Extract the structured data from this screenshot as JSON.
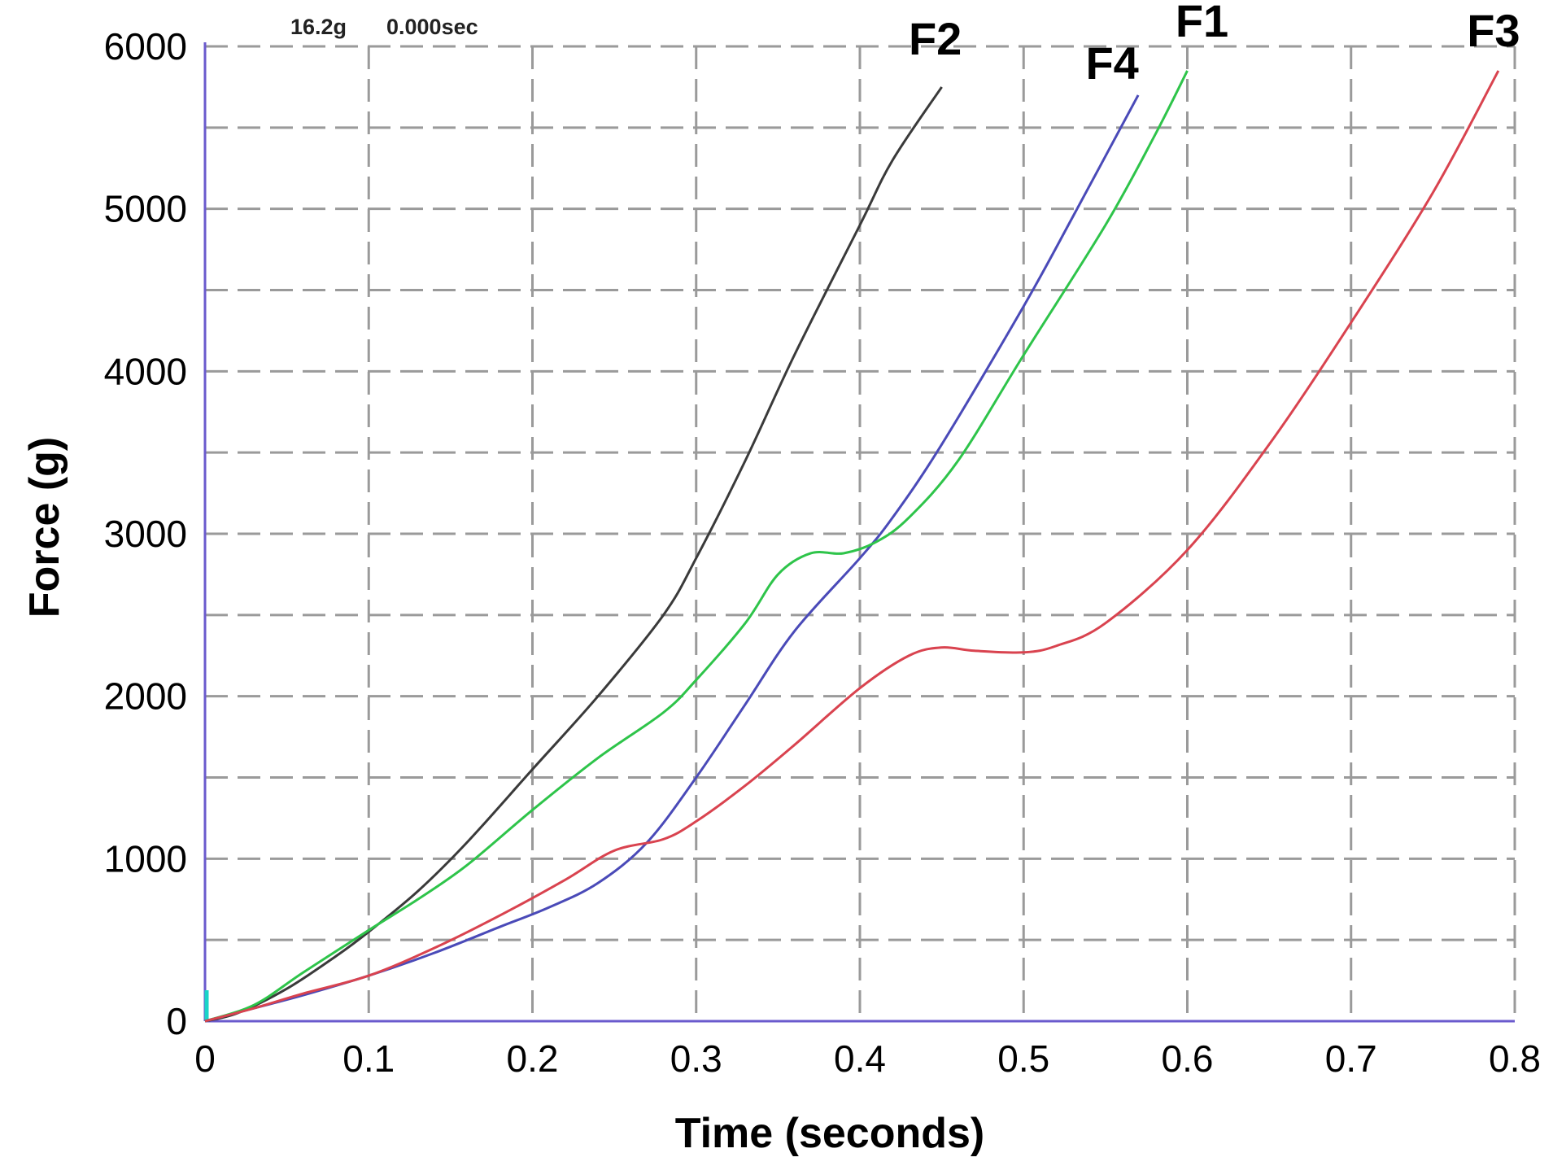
{
  "readout": {
    "force": "16.2g",
    "time": "0.000sec"
  },
  "chart_data": {
    "type": "line",
    "title": "",
    "xlabel": "Time (seconds)",
    "ylabel": "Force (g)",
    "xlim": [
      0,
      0.8
    ],
    "ylim": [
      0,
      6000
    ],
    "xticks": [
      0,
      0.1,
      0.2,
      0.3,
      0.4,
      0.5,
      0.6,
      0.7,
      0.8
    ],
    "xtick_labels": [
      "0",
      "0.1",
      "0.2",
      "0.3",
      "0.4",
      "0.5",
      "0.6",
      "0.7",
      "0.8"
    ],
    "yticks": [
      0,
      1000,
      2000,
      3000,
      4000,
      5000,
      6000
    ],
    "ytick_labels": [
      "0",
      "1000",
      "2000",
      "3000",
      "4000",
      "5000",
      "6000"
    ],
    "grid": true,
    "grid_style": "dashed",
    "series": [
      {
        "name": "F2",
        "color": "#3a3a3a",
        "x": [
          0,
          0.02,
          0.05,
          0.08,
          0.1,
          0.13,
          0.16,
          0.2,
          0.24,
          0.28,
          0.3,
          0.33,
          0.36,
          0.4,
          0.42,
          0.45
        ],
        "y": [
          0,
          50,
          200,
          400,
          550,
          800,
          1100,
          1550,
          2000,
          2500,
          2850,
          3450,
          4100,
          4900,
          5300,
          5750
        ]
      },
      {
        "name": "F4",
        "color": "#4a4ab8",
        "x": [
          0,
          0.03,
          0.06,
          0.1,
          0.14,
          0.18,
          0.21,
          0.24,
          0.27,
          0.3,
          0.33,
          0.36,
          0.4,
          0.42,
          0.45,
          0.5,
          0.53,
          0.57
        ],
        "y": [
          0,
          80,
          160,
          280,
          420,
          580,
          700,
          850,
          1100,
          1500,
          1950,
          2400,
          2850,
          3100,
          3550,
          4400,
          4950,
          5700
        ]
      },
      {
        "name": "F1",
        "color": "#2ec44a",
        "x": [
          0,
          0.03,
          0.06,
          0.1,
          0.13,
          0.16,
          0.2,
          0.24,
          0.28,
          0.3,
          0.33,
          0.35,
          0.37,
          0.39,
          0.41,
          0.43,
          0.46,
          0.5,
          0.55,
          0.58,
          0.6
        ],
        "y": [
          0,
          100,
          300,
          560,
          750,
          960,
          1300,
          1620,
          1900,
          2100,
          2450,
          2750,
          2880,
          2880,
          2950,
          3100,
          3450,
          4100,
          4900,
          5450,
          5850
        ]
      },
      {
        "name": "F3",
        "color": "#d9434f",
        "x": [
          0,
          0.03,
          0.06,
          0.1,
          0.14,
          0.18,
          0.22,
          0.25,
          0.28,
          0.3,
          0.33,
          0.36,
          0.4,
          0.43,
          0.45,
          0.47,
          0.5,
          0.52,
          0.55,
          0.6,
          0.65,
          0.7,
          0.75,
          0.79
        ],
        "y": [
          0,
          80,
          170,
          280,
          450,
          650,
          870,
          1050,
          1120,
          1230,
          1450,
          1700,
          2050,
          2250,
          2300,
          2280,
          2270,
          2310,
          2450,
          2900,
          3550,
          4300,
          5100,
          5850
        ]
      }
    ]
  }
}
